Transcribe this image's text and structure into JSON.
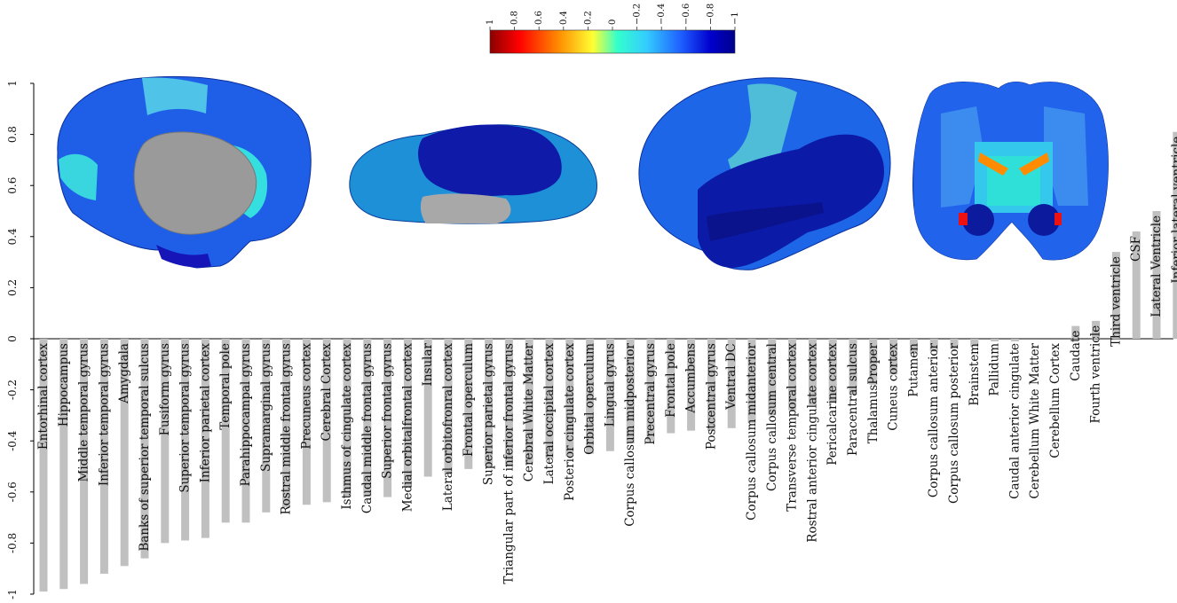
{
  "colors": {
    "bar": "#c0c0c0",
    "axis": "#000000",
    "colorbar_stops": [
      "#8b0000",
      "#ff0000",
      "#ff8c00",
      "#ffff33",
      "#33ffcc",
      "#33ccff",
      "#1e5fff",
      "#0000cd",
      "#00008b"
    ]
  },
  "colorbar": {
    "ticks": [
      "1",
      "0.8",
      "0.6",
      "0.4",
      "0.2",
      "0",
      "−0.2",
      "−0.4",
      "−0.6",
      "−0.8",
      "−1"
    ]
  },
  "brain_views": [
    "medial-cortex-view",
    "inferior-cortex-view",
    "lateral-cortex-view",
    "coronal-slice-view"
  ],
  "chart_data": {
    "type": "bar",
    "ylim": [
      -1,
      1
    ],
    "yticks": [
      "1",
      "0.8",
      "0.6",
      "0.4",
      "0.2",
      "0",
      "-0.2",
      "-0.4",
      "-0.6",
      "-0.8",
      "-1"
    ],
    "categories": [
      "Entorhinal cortex",
      "Hippocampus",
      "Middle temporal gyrus",
      "Inferior temporal gyrus",
      "Amygdala",
      "Banks of superior temporal sulcus",
      "Fusiform gyrus",
      "Superior temporal gyrus",
      "Inferior parietal cortex",
      "Temporal pole",
      "Parahippocampal gyrus",
      "Supramarginal gyrus",
      "Rostral middle frontal gyrus",
      "Precuneus cortex",
      "Cerebral Cortex",
      "Isthmus of cingulate cortex",
      "Caudal middle frontal gyrus",
      "Superior frontal gyrus",
      "Medial orbitalfrontal cortex",
      "Insular",
      "Lateral orbitofronral cortex",
      "Frontal operculum",
      "Superior parietal gyrus",
      "Triangular part of inferior frontal gyrus",
      "Cerebral White Matter",
      "Lateral occipital cortex",
      "Posterior cingulate cortex",
      "Orbital operculum",
      "Lingual gyrus",
      "Corpus callosum  midposterior",
      "Precentral gyrus",
      "Frontal pole",
      "Accumbens",
      "Postcentral gyrus",
      "Ventral DC",
      "Corpus callosum  midanterior",
      "Corpus callosum  central",
      "Transverse temporal cortex",
      "Rostral anterior cingulate cortex",
      "Pericalcarine cortex",
      "Paracentral sulcus",
      "ThalamusProper",
      "Cuneus cortex",
      "Putamen",
      "Corpus callosum  anterior",
      "Corpus callosum  posterior",
      "Brainstem",
      "Pallidum",
      "Caudal anterior cingulate",
      "Cerebellum White Matter",
      "Cerebellum Cortex",
      "Caudate",
      "Fourth ventricle",
      "Third ventricle",
      "CSF",
      "Lateral Ventricle",
      "Inferior lateral ventricle"
    ],
    "values": [
      -0.99,
      -0.98,
      -0.96,
      -0.92,
      -0.89,
      -0.86,
      -0.8,
      -0.79,
      -0.78,
      -0.72,
      -0.72,
      -0.68,
      -0.66,
      -0.65,
      -0.64,
      -0.62,
      -0.62,
      -0.62,
      -0.58,
      -0.54,
      -0.53,
      -0.51,
      -0.5,
      -0.5,
      -0.49,
      -0.47,
      -0.46,
      -0.45,
      -0.44,
      -0.41,
      -0.4,
      -0.37,
      -0.36,
      -0.36,
      -0.35,
      -0.33,
      -0.3,
      -0.28,
      -0.26,
      -0.25,
      -0.22,
      -0.18,
      -0.14,
      -0.06,
      -0.05,
      -0.04,
      -0.03,
      -0.01,
      -0.01,
      0.0,
      0.0,
      0.05,
      0.07,
      0.34,
      0.42,
      0.5,
      0.81
    ]
  }
}
